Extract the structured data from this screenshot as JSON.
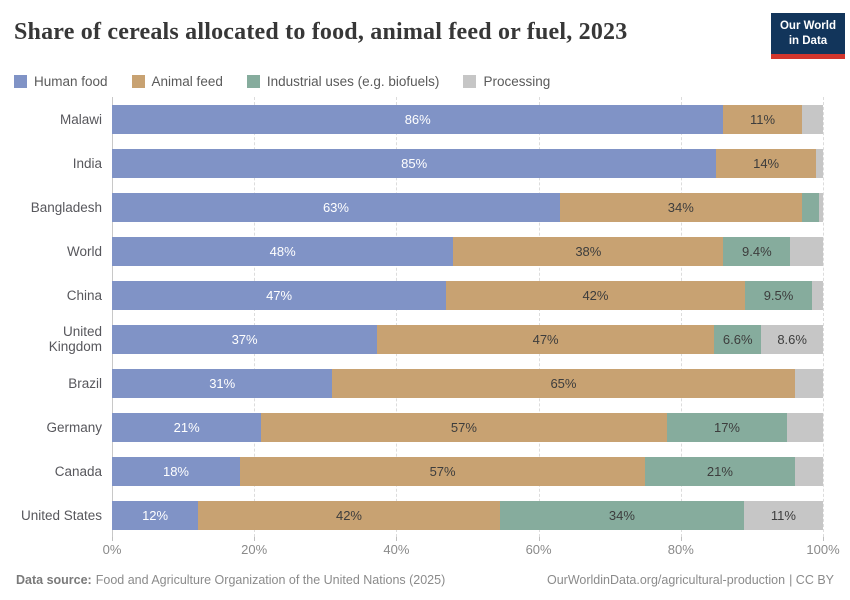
{
  "header": {
    "title": "Share of cereals allocated to food, animal feed or fuel, 2023",
    "logo": {
      "line1": "Our World",
      "line2": "in Data"
    }
  },
  "colors": {
    "human_food": "#8093c6",
    "animal_feed": "#c8a272",
    "industrial_uses": "#86ac9d",
    "processing": "#c6c6c6",
    "logo_navy": "#12355b",
    "logo_red": "#d2352c"
  },
  "chart_data": {
    "type": "bar",
    "orientation": "horizontal",
    "stacked": true,
    "value_unit": "%",
    "xlim": [
      0,
      100
    ],
    "x_ticks": [
      "0%",
      "20%",
      "40%",
      "60%",
      "80%",
      "100%"
    ],
    "grid": "dashed-vertical",
    "legend_position": "top",
    "categories": [
      "Malawi",
      "India",
      "Bangladesh",
      "World",
      "China",
      "United Kingdom",
      "Brazil",
      "Germany",
      "Canada",
      "United States"
    ],
    "series": [
      {
        "name": "Human food",
        "color_key": "human_food",
        "label_color": "#ffffff",
        "values": [
          86,
          85,
          63,
          48,
          47,
          37,
          31,
          21,
          18,
          12
        ],
        "labels": [
          "86%",
          "85%",
          "63%",
          "48%",
          "47%",
          "37%",
          "31%",
          "21%",
          "18%",
          "12%"
        ]
      },
      {
        "name": "Animal feed",
        "color_key": "animal_feed",
        "label_color": "#3d3d3d",
        "values": [
          11,
          14,
          34,
          38,
          42,
          47,
          65,
          57,
          57,
          42
        ],
        "labels": [
          "11%",
          "14%",
          "34%",
          "38%",
          "42%",
          "47%",
          "65%",
          "57%",
          "57%",
          "42%"
        ]
      },
      {
        "name": "Industrial uses (e.g. biofuels)",
        "color_key": "industrial_uses",
        "label_color": "#3d3d3d",
        "values": [
          0,
          0,
          2.5,
          9.4,
          9.5,
          6.6,
          0,
          17,
          21,
          34
        ],
        "labels": [
          "",
          "",
          "",
          "9.4%",
          "9.5%",
          "6.6%",
          "",
          "17%",
          "21%",
          "34%"
        ]
      },
      {
        "name": "Processing",
        "color_key": "processing",
        "label_color": "#3d3d3d",
        "values": [
          3,
          1,
          0.5,
          4.6,
          1.5,
          8.6,
          4,
          5,
          4,
          11
        ],
        "labels": [
          "",
          "",
          "",
          "",
          "",
          "8.6%",
          "",
          "",
          "",
          "11%"
        ]
      }
    ]
  },
  "footer": {
    "source_label": "Data source:",
    "source_text": "Food and Agriculture Organization of the United Nations (2025)",
    "link": "OurWorldinData.org/agricultural-production",
    "license": "| CC BY"
  }
}
